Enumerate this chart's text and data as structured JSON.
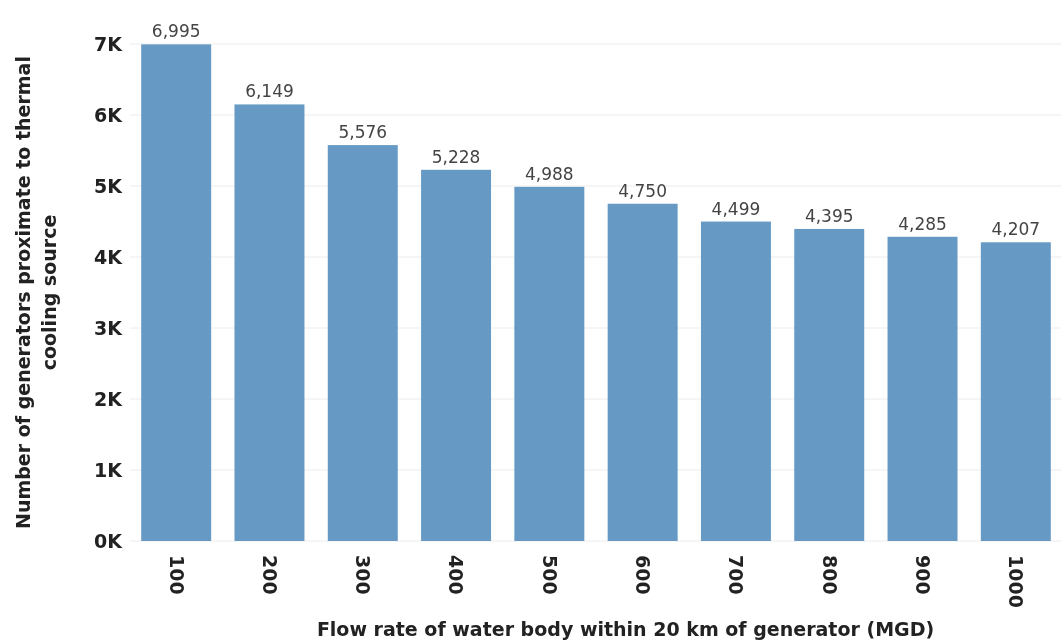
{
  "chart_data": {
    "type": "bar",
    "xlabel": "Flow rate of water body within 20 km of generator (MGD)",
    "ylabel": "Number of generators proximate to thermal cooling source",
    "categories": [
      "100",
      "200",
      "300",
      "400",
      "500",
      "600",
      "700",
      "800",
      "900",
      "1000"
    ],
    "values": [
      6995,
      6149,
      5576,
      5228,
      4988,
      4750,
      4499,
      4395,
      4285,
      4207
    ],
    "value_labels": [
      "6,995",
      "6,149",
      "5,576",
      "5,228",
      "4,988",
      "4,750",
      "4,499",
      "4,395",
      "4,285",
      "4,207"
    ],
    "color": "#6699c3",
    "grid": "y",
    "ylim": [
      0,
      7000
    ],
    "yticks": [
      {
        "value": 0,
        "label": "0K"
      },
      {
        "value": 1000,
        "label": "1K"
      },
      {
        "value": 2000,
        "label": "2K"
      },
      {
        "value": 3000,
        "label": "3K"
      },
      {
        "value": 4000,
        "label": "4K"
      },
      {
        "value": 5000,
        "label": "5K"
      },
      {
        "value": 6000,
        "label": "6K"
      },
      {
        "value": 7000,
        "label": "7K"
      }
    ]
  }
}
